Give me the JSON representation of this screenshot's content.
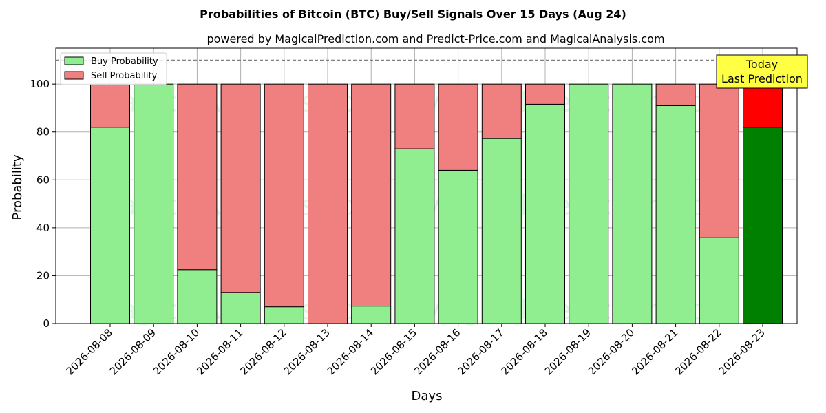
{
  "chart_data": {
    "type": "bar",
    "stacked": true,
    "title": "Probabilities of Bitcoin (BTC) Buy/Sell Signals Over 15 Days (Aug 24)",
    "subtitle": "powered by MagicalPrediction.com and Predict-Price.com and MagicalAnalysis.com",
    "xlabel": "Days",
    "ylabel": "Probability",
    "ylim": [
      0,
      115
    ],
    "yticks": [
      0,
      20,
      40,
      60,
      80,
      100
    ],
    "grid": true,
    "legend_position": "top-left",
    "reference_line": 110,
    "categories": [
      "2026-08-08",
      "2026-08-09",
      "2026-08-10",
      "2026-08-11",
      "2026-08-12",
      "2026-08-13",
      "2026-08-14",
      "2026-08-15",
      "2026-08-16",
      "2026-08-17",
      "2026-08-18",
      "2026-08-19",
      "2026-08-20",
      "2026-08-21",
      "2026-08-22",
      "2026-08-23"
    ],
    "series": [
      {
        "name": "Buy Probability",
        "color": "#90ee90",
        "values": [
          82,
          100,
          22.5,
          13,
          7,
          0,
          7.3,
          73,
          64,
          77.3,
          91.6,
          100,
          100,
          91,
          36,
          82
        ]
      },
      {
        "name": "Sell Probability",
        "color": "#f08080",
        "values": [
          18,
          0,
          77.5,
          87,
          93,
          100,
          92.7,
          27,
          36,
          22.7,
          8.4,
          0,
          0,
          9,
          64,
          18
        ]
      }
    ],
    "highlight": {
      "index": 15,
      "buy_color": "#008000",
      "sell_color": "#ff0000"
    },
    "annotation": {
      "lines": [
        "Today",
        "Last Prediction"
      ],
      "background": "#ffff44"
    },
    "watermarks": [
      "MagicalAnalysis.com",
      "MagicalPrediction.com"
    ]
  }
}
